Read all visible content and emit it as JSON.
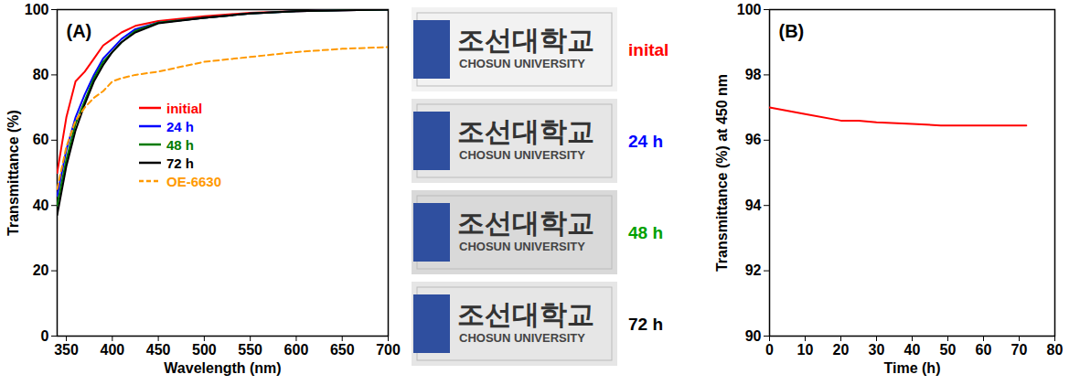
{
  "chart_data": [
    {
      "type": "line",
      "title": "(A)",
      "x_label": "Wavelength (nm)",
      "y_label": "Transmittance (%)",
      "x": [
        340,
        350,
        360,
        370,
        380,
        390,
        400,
        410,
        425,
        450,
        500,
        550,
        600,
        650,
        700
      ],
      "series": [
        {
          "name": "initial",
          "color": "#ff0000",
          "line_style": "solid",
          "values": [
            50,
            67,
            78,
            81,
            85,
            89,
            91,
            93,
            95,
            96.5,
            98,
            99,
            99.5,
            99.8,
            100
          ]
        },
        {
          "name": "24 h",
          "color": "#0000ff",
          "line_style": "solid",
          "values": [
            43,
            57,
            67,
            74,
            80,
            85,
            88,
            91,
            94,
            96,
            97.5,
            98.8,
            99.5,
            99.8,
            100
          ]
        },
        {
          "name": "48 h",
          "color": "#007a00",
          "line_style": "solid",
          "values": [
            40,
            54,
            65,
            72,
            79,
            84,
            87,
            90,
            93.5,
            96,
            97.5,
            98.8,
            99.5,
            99.8,
            100
          ]
        },
        {
          "name": "72 h",
          "color": "#000000",
          "line_style": "solid",
          "values": [
            37,
            52,
            63,
            71,
            78,
            83,
            87,
            90,
            93,
            95.8,
            97.5,
            98.8,
            99.5,
            99.8,
            100
          ]
        },
        {
          "name": "OE-6630",
          "color": "#ff9900",
          "line_style": "dashed",
          "values": [
            45,
            58,
            66,
            70,
            73,
            75,
            78,
            79,
            80,
            81,
            84,
            85.5,
            87,
            88,
            88.5
          ]
        }
      ],
      "xlim": [
        340,
        700
      ],
      "xticks": [
        350,
        400,
        450,
        500,
        550,
        600,
        650,
        700
      ],
      "ylim": [
        0,
        100
      ],
      "yticks": [
        0,
        20,
        40,
        60,
        80,
        100
      ],
      "grid": false,
      "legend": "center"
    },
    {
      "type": "line",
      "title": "(B)",
      "x_label": "Time (h)",
      "y_label": "Transmittance (%) at 450 nm",
      "x": [
        0,
        10,
        20,
        25,
        30,
        40,
        48,
        60,
        72
      ],
      "series": [
        {
          "color": "#ff0000",
          "line_style": "solid",
          "values": [
            97,
            96.8,
            96.6,
            96.6,
            96.55,
            96.5,
            96.45,
            96.45,
            96.45
          ]
        }
      ],
      "xlim": [
        0,
        80
      ],
      "xticks": [
        0,
        10,
        20,
        30,
        40,
        50,
        60,
        70,
        80
      ],
      "ylim": [
        90,
        100
      ],
      "yticks": [
        90,
        92,
        94,
        96,
        98,
        100
      ],
      "grid": false
    }
  ],
  "photo": {
    "logo_text": "조선대학교",
    "logo_subtext": "CHOSUN UNIVERSITY",
    "labels": [
      {
        "text": "inital",
        "color": "#ff0000"
      },
      {
        "text": "24 h",
        "color": "#0000ff"
      },
      {
        "text": "48 h",
        "color": "#00a000"
      },
      {
        "text": "72 h",
        "color": "#000000"
      }
    ]
  }
}
